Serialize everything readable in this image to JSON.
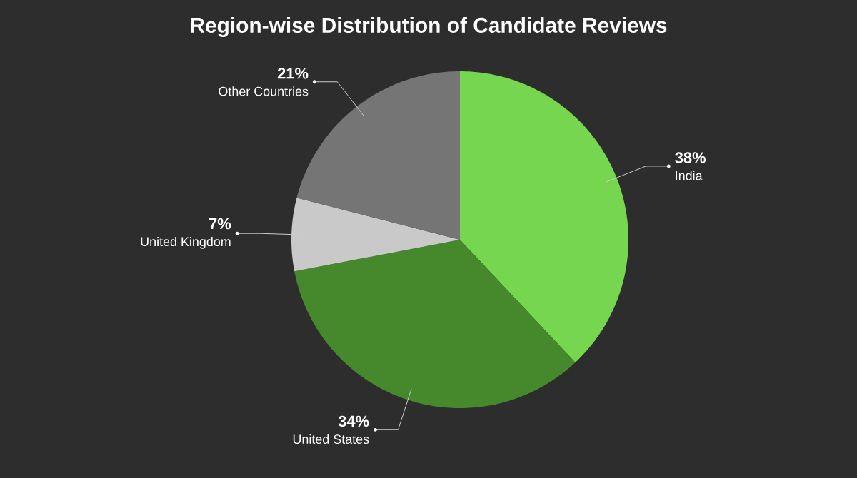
{
  "chart_data": {
    "type": "pie",
    "title": "Region-wise Distribution of Candidate Reviews",
    "categories": [
      "India",
      "United States",
      "United Kingdom",
      "Other Countries"
    ],
    "values": [
      38,
      34,
      7,
      21
    ],
    "colors": [
      "#77d64f",
      "#46882c",
      "#c9c9c9",
      "#757575"
    ],
    "value_labels": [
      "38%",
      "34%",
      "7%",
      "21%"
    ]
  }
}
